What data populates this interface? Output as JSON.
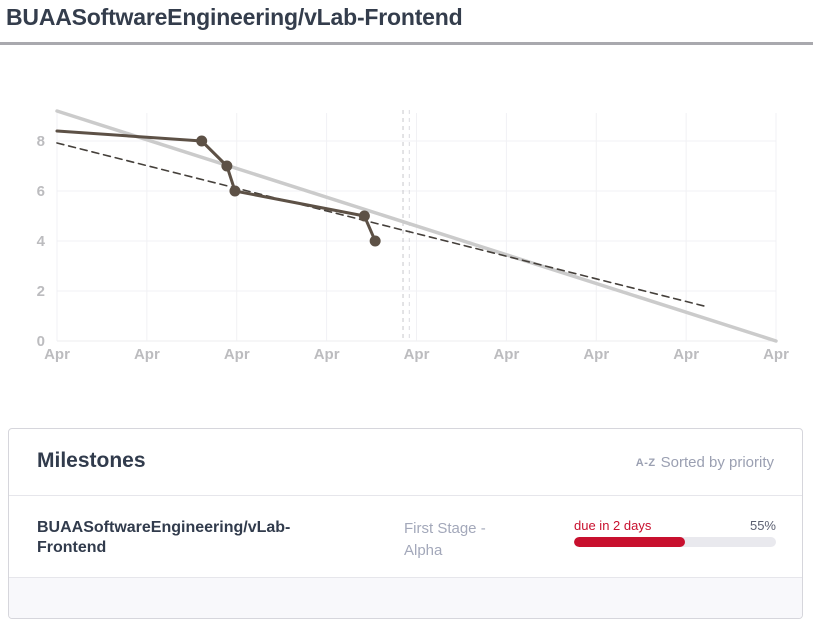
{
  "header": {
    "title": "BUAASoftwareEngineering/vLab-Frontend"
  },
  "chart_data": {
    "type": "line",
    "title": "",
    "xlabel": "",
    "ylabel": "",
    "x_tick_labels": [
      "Apr",
      "Apr",
      "Apr",
      "Apr",
      "Apr",
      "Apr",
      "Apr",
      "Apr",
      "Apr"
    ],
    "y_ticks": [
      0,
      2,
      4,
      6,
      8
    ],
    "x_range": [
      0,
      8
    ],
    "y_range": [
      0,
      9.44
    ],
    "grid": true,
    "legend": "none",
    "tick_label_color": "#bcbcbf",
    "grid_color": "#f1f1f4",
    "axis_line_color": "#ececef",
    "series": [
      {
        "name": "ideal-burndown",
        "style": "solid",
        "color": "#cbcbcb",
        "width": 3.5,
        "markers": false,
        "points": [
          [
            0,
            9.2
          ],
          [
            8,
            0
          ]
        ]
      },
      {
        "name": "trend-guideline",
        "style": "dashed",
        "color": "#45403b",
        "width": 1.6,
        "markers": false,
        "points": [
          [
            0,
            7.92
          ],
          [
            7.2,
            1.4
          ]
        ]
      },
      {
        "name": "actual-burndown",
        "style": "solid",
        "color": "#5d5146",
        "width": 3,
        "markers": true,
        "marker_radius": 5.5,
        "points": [
          [
            0,
            8.4
          ],
          [
            1.61,
            8
          ],
          [
            1.89,
            7
          ],
          [
            1.98,
            6
          ],
          [
            3.42,
            5
          ],
          [
            3.54,
            4
          ]
        ]
      }
    ],
    "vlines": [
      {
        "x": 3.85,
        "color": "#c7c7cc",
        "style": "dashed"
      },
      {
        "x": 3.92,
        "color": "#dcdce0",
        "style": "dashed"
      }
    ]
  },
  "milestones": {
    "title": "Milestones",
    "sort_icon_label": "A-Z",
    "sort_label": "Sorted by priority",
    "items": [
      {
        "name": "BUAASoftwareEngineering/vLab-Frontend",
        "stage": "First Stage - Alpha",
        "due": "due in 2 days",
        "percent_label": "55%",
        "percent": 55,
        "bar_color": "#c8102e"
      }
    ]
  }
}
